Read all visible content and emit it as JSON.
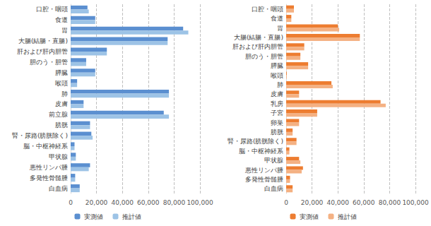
{
  "chart_data": [
    {
      "type": "bar",
      "orientation": "horizontal",
      "grid": true,
      "legend": "bottom",
      "categories": [
        "口腔・咽頭",
        "食道",
        "胃",
        "大腸(結腸・直腸)",
        "肝および肝内胆管",
        "胆のう・胆管",
        "膵臓",
        "喉頭",
        "肺",
        "皮膚",
        "前立腺",
        "膀胱",
        "腎・尿路(膀胱除く)",
        "脳・中枢神経系",
        "甲状腺",
        "悪性リンパ腫",
        "多発性骨髄腫",
        "白血病"
      ],
      "series": [
        {
          "name": "実測値",
          "color": "#5b8fd0",
          "values": [
            13000,
            19000,
            87000,
            75000,
            28000,
            12000,
            19000,
            5000,
            76000,
            10000,
            72000,
            15000,
            16000,
            3000,
            4000,
            15000,
            3500,
            7000
          ]
        },
        {
          "name": "推計値",
          "color": "#9dc3e6",
          "values": [
            14000,
            19000,
            91000,
            75000,
            28000,
            12000,
            19000,
            5000,
            76000,
            10000,
            76000,
            15000,
            17000,
            3000,
            4000,
            14000,
            3500,
            7000
          ]
        }
      ],
      "xlim": [
        0,
        100000
      ],
      "xticks": [
        0,
        {
          "value": 20000,
          "label": "20,000"
        },
        {
          "value": 40000,
          "label": "40,000"
        },
        {
          "value": 60000,
          "label": "60,000"
        },
        {
          "value": 80000,
          "label": "80,000"
        },
        {
          "value": 100000,
          "label": "100,000"
        }
      ]
    },
    {
      "type": "bar",
      "orientation": "horizontal",
      "grid": true,
      "legend": "bottom",
      "categories": [
        "口腔・咽頭",
        "食道",
        "胃",
        "大腸(結腸・直腸)",
        "肝および肝内胆管",
        "胆のう・胆管",
        "膵臓",
        "喉頭",
        "肺",
        "皮膚",
        "乳房",
        "子宮",
        "卵巣",
        "膀胱",
        "腎・尿路(膀胱除く)",
        "脳・中枢神経系",
        "甲状腺",
        "悪性リンパ腫",
        "多発性骨髄腫",
        "白血病"
      ],
      "series": [
        {
          "name": "実測値",
          "color": "#ed7d31",
          "values": [
            6000,
            4000,
            40000,
            57000,
            14000,
            11000,
            17000,
            500,
            35000,
            10000,
            73000,
            24000,
            10000,
            5000,
            8000,
            2500,
            10000,
            13000,
            3000,
            5000
          ]
        },
        {
          "name": "推計値",
          "color": "#f4b183",
          "values": [
            6000,
            4000,
            41000,
            57000,
            14000,
            11000,
            17000,
            500,
            36000,
            10000,
            77000,
            24000,
            10000,
            5000,
            8000,
            2500,
            11000,
            12000,
            3000,
            5000
          ]
        }
      ],
      "xlim": [
        0,
        100000
      ],
      "xticks": [
        0,
        {
          "value": 20000,
          "label": "20,000"
        },
        {
          "value": 40000,
          "label": "40,000"
        },
        {
          "value": 60000,
          "label": "60,000"
        },
        {
          "value": 80000,
          "label": "80,000"
        },
        {
          "value": 100000,
          "label": "100,000"
        }
      ]
    }
  ]
}
